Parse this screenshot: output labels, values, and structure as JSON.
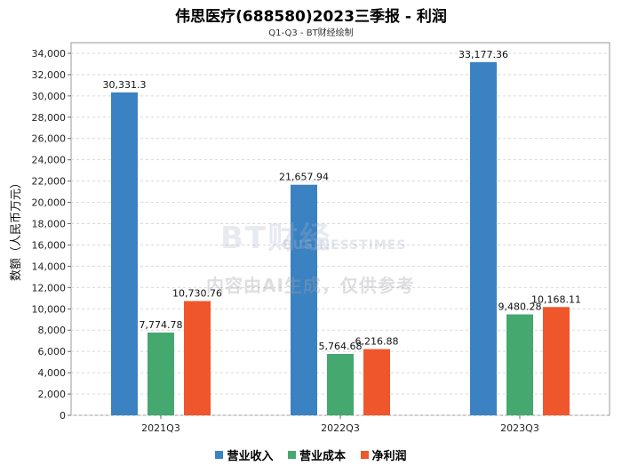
{
  "title": "伟思医疗(688580)2023三季报 - 利润",
  "subtitle": "Q1-Q3 - BT财经绘制",
  "watermark": {
    "logo": "BT财经",
    "logo_sub": "BUSINESSTIMES",
    "notice": "内容由AI生成，仅供参考"
  },
  "chart_data": {
    "type": "bar",
    "categories": [
      "2021Q3",
      "2022Q3",
      "2023Q3"
    ],
    "series": [
      {
        "name": "营业收入",
        "color": "#3a82c2",
        "values": [
          30331.3,
          21657.94,
          33177.36
        ],
        "labels": [
          "30,331.3",
          "21,657.94",
          "33,177.36"
        ]
      },
      {
        "name": "营业成本",
        "color": "#45a86f",
        "values": [
          7774.78,
          5764.68,
          9480.28
        ],
        "labels": [
          "7,774.78",
          "5,764.68",
          "9,480.28"
        ]
      },
      {
        "name": "净利润",
        "color": "#f0562b",
        "values": [
          10730.76,
          6216.88,
          10168.11
        ],
        "labels": [
          "10,730.76",
          "6,216.88",
          "10,168.11"
        ]
      }
    ],
    "ylabel": "数额（人民币万元）",
    "ylim": [
      0,
      35000
    ],
    "yticks": [
      0,
      2000,
      4000,
      6000,
      8000,
      10000,
      12000,
      14000,
      16000,
      18000,
      20000,
      22000,
      24000,
      26000,
      28000,
      30000,
      32000,
      34000
    ],
    "ytick_labels": [
      "0",
      "2,000",
      "4,000",
      "6,000",
      "8,000",
      "10,000",
      "12,000",
      "14,000",
      "16,000",
      "18,000",
      "20,000",
      "22,000",
      "24,000",
      "26,000",
      "28,000",
      "30,000",
      "32,000",
      "34,000"
    ],
    "grid": true,
    "legend": "bottom-center"
  }
}
